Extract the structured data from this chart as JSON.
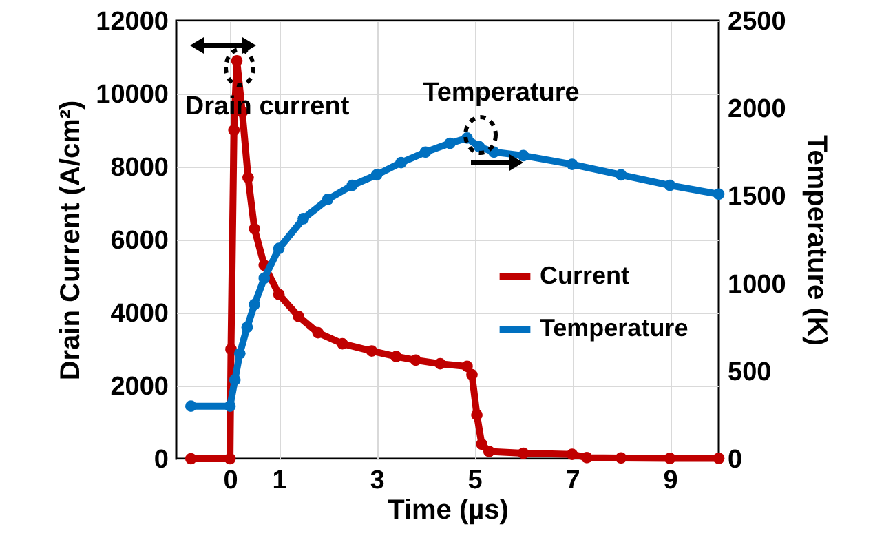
{
  "chart_data": {
    "type": "line",
    "xlabel": "Time (µs)",
    "ylabel": "Drain Current (A/cm²)",
    "y2label": "Temperature (K)",
    "xlim": [
      -1.1,
      10
    ],
    "xticks": [
      0,
      1,
      3,
      5,
      7,
      9
    ],
    "ylim": [
      0,
      12000
    ],
    "yticks": [
      0,
      2000,
      4000,
      6000,
      8000,
      10000,
      12000
    ],
    "y2lim": [
      0,
      2500
    ],
    "y2ticks": [
      0,
      500,
      1000,
      1500,
      2000,
      2500
    ],
    "grid": true,
    "legend": "right",
    "marker": "circle",
    "line_style": "solid",
    "annotations": [
      "Drain current",
      "Temperature"
    ],
    "series": [
      {
        "name": "Current",
        "color": "#c00000",
        "x": [
          -0.8,
          0,
          0.02,
          0.08,
          0.14,
          0.25,
          0.37,
          0.5,
          0.7,
          1,
          1.4,
          1.8,
          2.3,
          2.9,
          3.4,
          3.8,
          4.3,
          4.85,
          4.95,
          5.05,
          5.15,
          5.3,
          6,
          7,
          7.3,
          8,
          9,
          10
        ],
        "values": [
          0,
          0,
          3000,
          9000,
          10900,
          9500,
          7700,
          6300,
          5300,
          4500,
          3900,
          3450,
          3150,
          2950,
          2800,
          2700,
          2600,
          2530,
          2300,
          1200,
          400,
          200,
          150,
          120,
          30,
          20,
          10,
          10
        ]
      },
      {
        "name": "Temperature",
        "color": "#0070c0",
        "axis": "y2",
        "x": [
          -0.8,
          0,
          0.1,
          0.2,
          0.35,
          0.5,
          0.7,
          1,
          1.5,
          2,
          2.5,
          3,
          3.5,
          4,
          4.5,
          4.85,
          5.1,
          5.4,
          6,
          7,
          8,
          9,
          10
        ],
        "values": [
          300,
          300,
          450,
          600,
          750,
          880,
          1030,
          1200,
          1370,
          1480,
          1560,
          1620,
          1690,
          1750,
          1800,
          1830,
          1780,
          1750,
          1730,
          1680,
          1620,
          1560,
          1510
        ]
      }
    ]
  }
}
